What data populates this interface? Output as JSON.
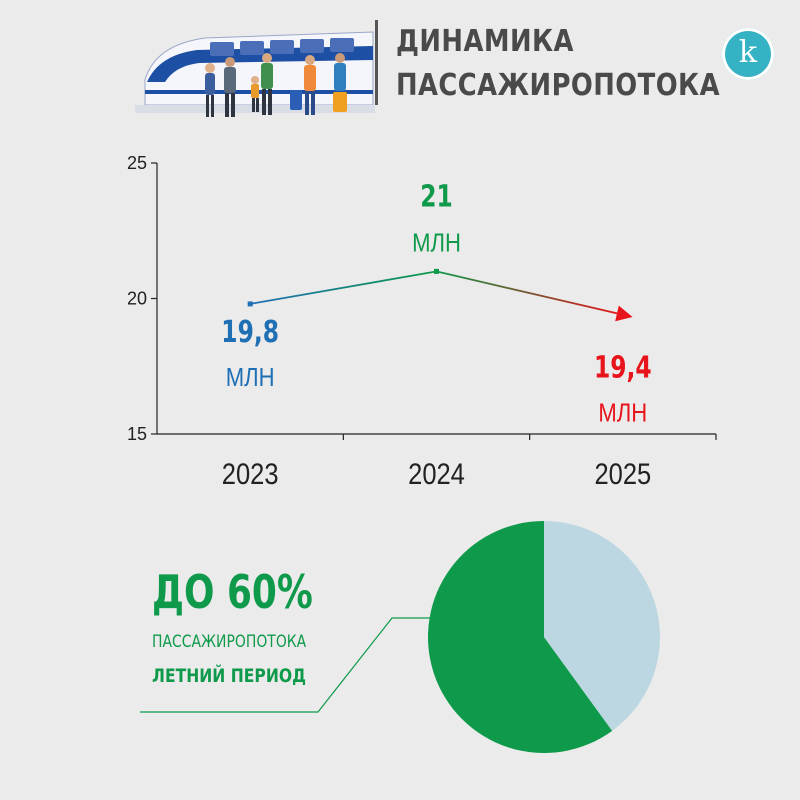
{
  "header": {
    "title_line1": "ДИНАМИКА",
    "title_line2": "ПАССАЖИРОПОТОКА",
    "logo_letter": "k"
  },
  "colors": {
    "background": "#ebebeb",
    "blue": "#1f6fb5",
    "green": "#0e9a4a",
    "red": "#e8141b",
    "pie_light": "#bcd7e2",
    "logo": "#35b3c4"
  },
  "chart_data": [
    {
      "type": "line",
      "x": [
        "2023",
        "2024",
        "2025"
      ],
      "y": [
        19.8,
        21,
        19.4
      ],
      "ylim": [
        15,
        25
      ],
      "yticks": [
        15,
        20,
        25
      ],
      "grid": false,
      "data_labels": [
        {
          "value": "19,8",
          "unit": "МЛН",
          "color": "#1f6fb5"
        },
        {
          "value": "21",
          "unit": "МЛН",
          "color": "#0e9a4a"
        },
        {
          "value": "19,4",
          "unit": "МЛН",
          "color": "#e8141b"
        }
      ]
    },
    {
      "type": "pie",
      "values": [
        60,
        40
      ],
      "colors": [
        "#0e9a4a",
        "#bcd7e2"
      ],
      "annotation": {
        "value": "ДО 60%",
        "label": "ПАССАЖИРОПОТОКА",
        "sublabel": "ЛЕТНИЙ ПЕРИОД"
      }
    }
  ]
}
